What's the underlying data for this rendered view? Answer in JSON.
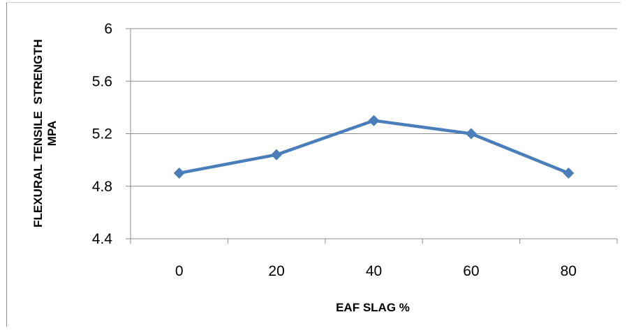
{
  "chart_data": {
    "type": "line",
    "categories": [
      "0",
      "20",
      "40",
      "60",
      "80"
    ],
    "series": [
      {
        "values": [
          4.9,
          5.04,
          5.3,
          5.2,
          4.9
        ],
        "color": "#4a7ebb",
        "marker": "diamond"
      }
    ],
    "xlabel": "EAF SLAG %",
    "ylabel_lines": [
      "FLEXURAL TENSILE  STRENGTH",
      "MPA"
    ],
    "ylim": [
      4.4,
      6
    ],
    "yticks": [
      "4.4",
      "4.8",
      "5.2",
      "5.6",
      "6"
    ],
    "grid": true,
    "legend": "none"
  }
}
